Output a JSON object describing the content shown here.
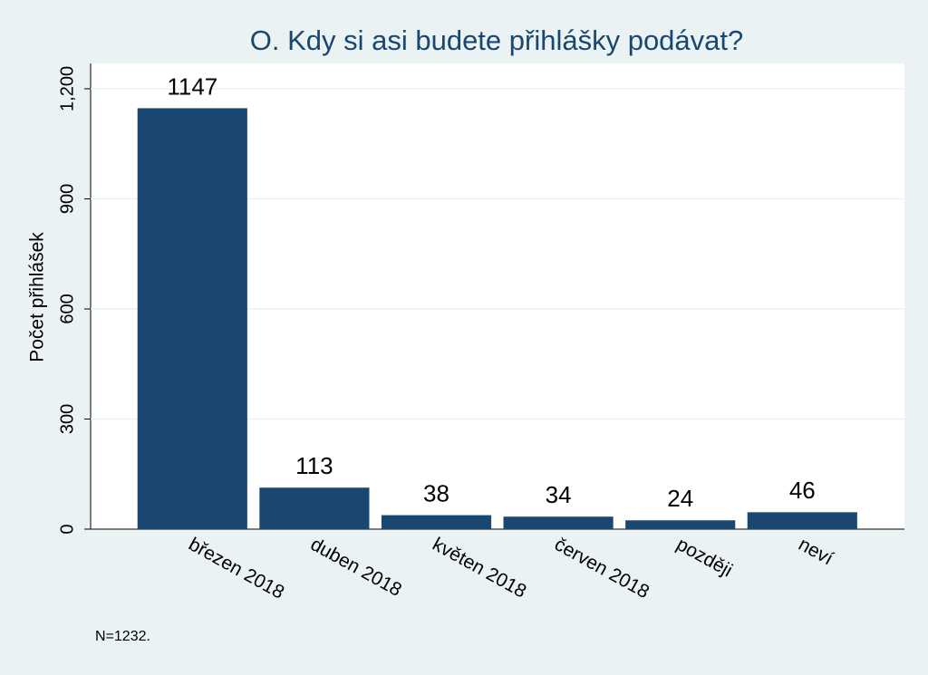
{
  "chart_data": {
    "type": "bar",
    "title": "O. Kdy si asi budete přihlášky podávat?",
    "y_label": "Počet přihlášek",
    "note": "N=1232.",
    "categories": [
      "březen 2018",
      "duben 2018",
      "květen 2018",
      "červen 2018",
      "později",
      "neví"
    ],
    "values": [
      1147,
      113,
      38,
      34,
      24,
      46
    ],
    "color": "#1a476f",
    "ylim": [
      0,
      1269
    ],
    "yticks": [
      0,
      300,
      600,
      900,
      {
        "value": 1200,
        "label": "1,200"
      }
    ],
    "grid": true
  }
}
